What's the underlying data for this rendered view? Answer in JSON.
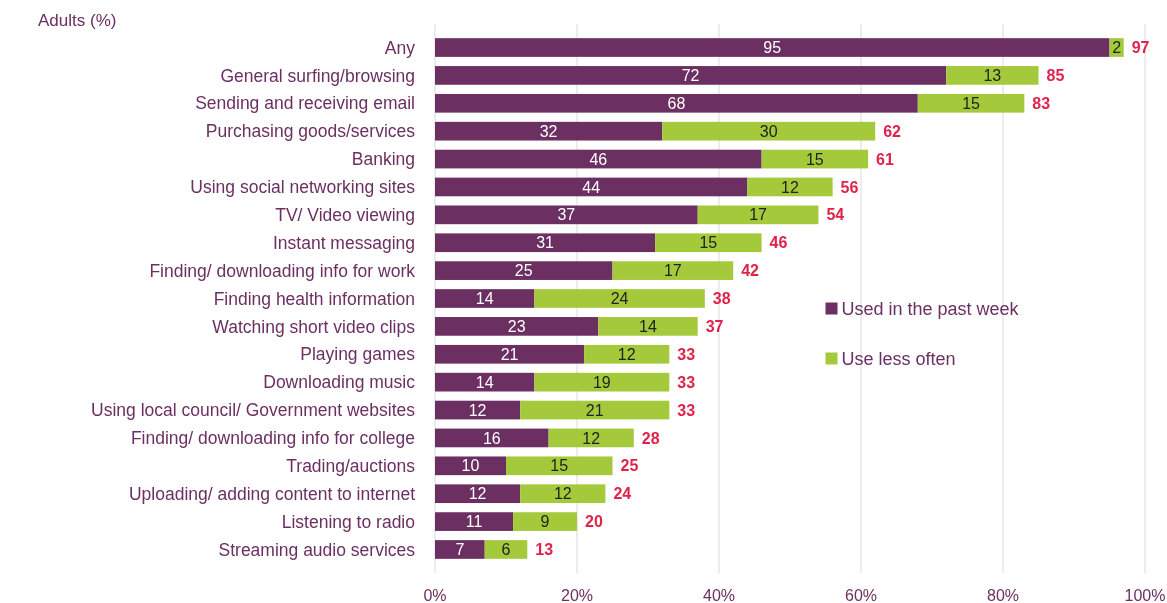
{
  "chart_data": {
    "type": "bar",
    "orientation": "horizontal",
    "stacked": true,
    "ylabel": "Adults (%)",
    "categories": [
      "Any",
      "General surfing/browsing",
      "Sending and receiving email",
      "Purchasing goods/services",
      "Banking",
      "Using social networking sites",
      "TV/ Video viewing",
      "Instant messaging",
      "Finding/ downloading info for work",
      "Finding health information",
      "Watching short video clips",
      "Playing games",
      "Downloading music",
      "Using local council/ Government websites",
      "Finding/ downloading info for college",
      "Trading/auctions",
      "Uploading/ adding content to internet",
      "Listening to radio",
      "Streaming audio services"
    ],
    "series": [
      {
        "name": "Used in the past week",
        "color": "#6b2f62",
        "values": [
          95,
          72,
          68,
          32,
          46,
          44,
          37,
          31,
          25,
          14,
          23,
          21,
          14,
          12,
          16,
          10,
          12,
          11,
          7
        ]
      },
      {
        "name": "Use less often",
        "color": "#a4c93b",
        "values": [
          2,
          13,
          15,
          30,
          15,
          12,
          17,
          15,
          17,
          24,
          14,
          12,
          19,
          21,
          12,
          15,
          12,
          9,
          6
        ]
      }
    ],
    "totals": [
      "97",
      "85",
      "83",
      "62",
      "61",
      "56",
      "54",
      "46",
      "42",
      "38",
      "37",
      "33",
      "33",
      "33",
      "28",
      "25",
      "24",
      "20",
      "13"
    ],
    "data_labels": true,
    "xlim": [
      0,
      100
    ],
    "xticks": [
      {
        "value": 0,
        "label": "0%"
      },
      {
        "value": 20,
        "label": "20%"
      },
      {
        "value": 40,
        "label": "40%"
      },
      {
        "value": 60,
        "label": "60%"
      },
      {
        "value": 80,
        "label": "80%"
      },
      {
        "value": 100,
        "label": "100%"
      }
    ],
    "grid": "x",
    "legend": "right"
  }
}
